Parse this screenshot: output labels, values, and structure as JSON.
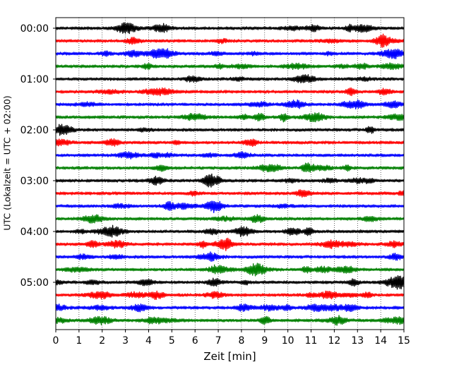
{
  "chart_data": {
    "type": "line",
    "title": "",
    "xlabel": "Zeit  [min]",
    "ylabel": "UTC (Lokalzeit = UTC + 02:00)",
    "xlim": [
      0,
      15
    ],
    "x_ticks": [
      0,
      1,
      2,
      3,
      4,
      5,
      6,
      7,
      8,
      9,
      10,
      11,
      12,
      13,
      14,
      15
    ],
    "x_tick_labels": [
      "0",
      "1",
      "2",
      "3",
      "4",
      "5",
      "6",
      "7",
      "8",
      "9",
      "10",
      "11",
      "12",
      "13",
      "14",
      "15"
    ],
    "y_ticks": [
      "00:00",
      "01:00",
      "02:00",
      "03:00",
      "04:00",
      "05:00"
    ],
    "grid": "vertical dotted at each minute",
    "trace_interval_minutes": 15,
    "trace_color_cycle": [
      "#000000",
      "#ff0000",
      "#0000ff",
      "#008000"
    ],
    "traces": [
      {
        "start": "00:00",
        "color": "#000000"
      },
      {
        "start": "00:15",
        "color": "#ff0000"
      },
      {
        "start": "00:30",
        "color": "#0000ff"
      },
      {
        "start": "00:45",
        "color": "#008000"
      },
      {
        "start": "01:00",
        "color": "#000000"
      },
      {
        "start": "01:15",
        "color": "#ff0000"
      },
      {
        "start": "01:30",
        "color": "#0000ff"
      },
      {
        "start": "01:45",
        "color": "#008000"
      },
      {
        "start": "02:00",
        "color": "#000000"
      },
      {
        "start": "02:15",
        "color": "#ff0000"
      },
      {
        "start": "02:30",
        "color": "#0000ff"
      },
      {
        "start": "02:45",
        "color": "#008000"
      },
      {
        "start": "03:00",
        "color": "#000000"
      },
      {
        "start": "03:15",
        "color": "#ff0000"
      },
      {
        "start": "03:30",
        "color": "#0000ff"
      },
      {
        "start": "03:45",
        "color": "#008000"
      },
      {
        "start": "04:00",
        "color": "#000000"
      },
      {
        "start": "04:15",
        "color": "#ff0000"
      },
      {
        "start": "04:30",
        "color": "#0000ff"
      },
      {
        "start": "04:45",
        "color": "#008000"
      },
      {
        "start": "05:00",
        "color": "#000000"
      },
      {
        "start": "05:15",
        "color": "#ff0000"
      },
      {
        "start": "05:30",
        "color": "#0000ff"
      },
      {
        "start": "05:45",
        "color": "#008000"
      }
    ]
  }
}
